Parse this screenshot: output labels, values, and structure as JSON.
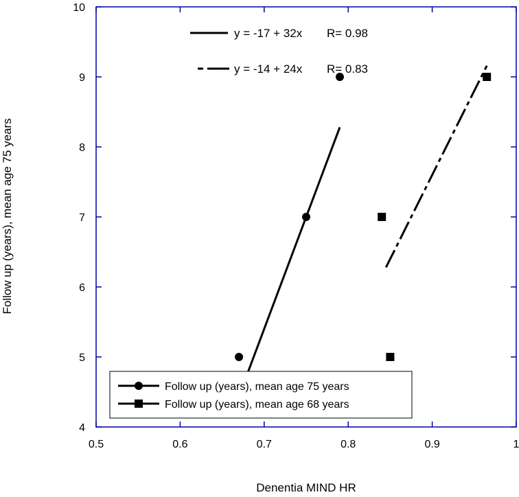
{
  "chart_data": {
    "type": "scatter",
    "title": "",
    "xlabel": "Denentia MIND HR",
    "ylabel": "Follow up (years), mean age 75 years",
    "xlim": [
      0.5,
      1
    ],
    "ylim": [
      4,
      10
    ],
    "xticks": [
      "0.5",
      "0.6",
      "0.7",
      "0.8",
      "0.9",
      "1"
    ],
    "yticks": [
      "4",
      "5",
      "6",
      "7",
      "8",
      "9",
      "10"
    ],
    "grid": false,
    "legend_position": "bottom-left",
    "series": [
      {
        "name": "Follow up (years), mean age 75 years",
        "marker": "circle",
        "x": [
          0.67,
          0.75,
          0.79
        ],
        "y": [
          5,
          7,
          9
        ],
        "fit": {
          "intercept": -17,
          "slope": 32,
          "x_range": [
            0.67,
            0.79
          ],
          "line_style": "solid",
          "equation": "y = -17 + 32x",
          "r_label": "R= 0.98"
        }
      },
      {
        "name": "Follow up (years), mean age 68 years",
        "marker": "square",
        "x": [
          0.84,
          0.85,
          0.965
        ],
        "y": [
          7,
          5,
          9
        ],
        "fit": {
          "intercept": -14,
          "slope": 24,
          "x_range": [
            0.845,
            0.965
          ],
          "line_style": "dash-dot",
          "equation": "y = -14 + 24x",
          "r_label": "R= 0.83"
        }
      }
    ],
    "colors": {
      "frame": "#0000aa",
      "data": "#000000"
    }
  }
}
